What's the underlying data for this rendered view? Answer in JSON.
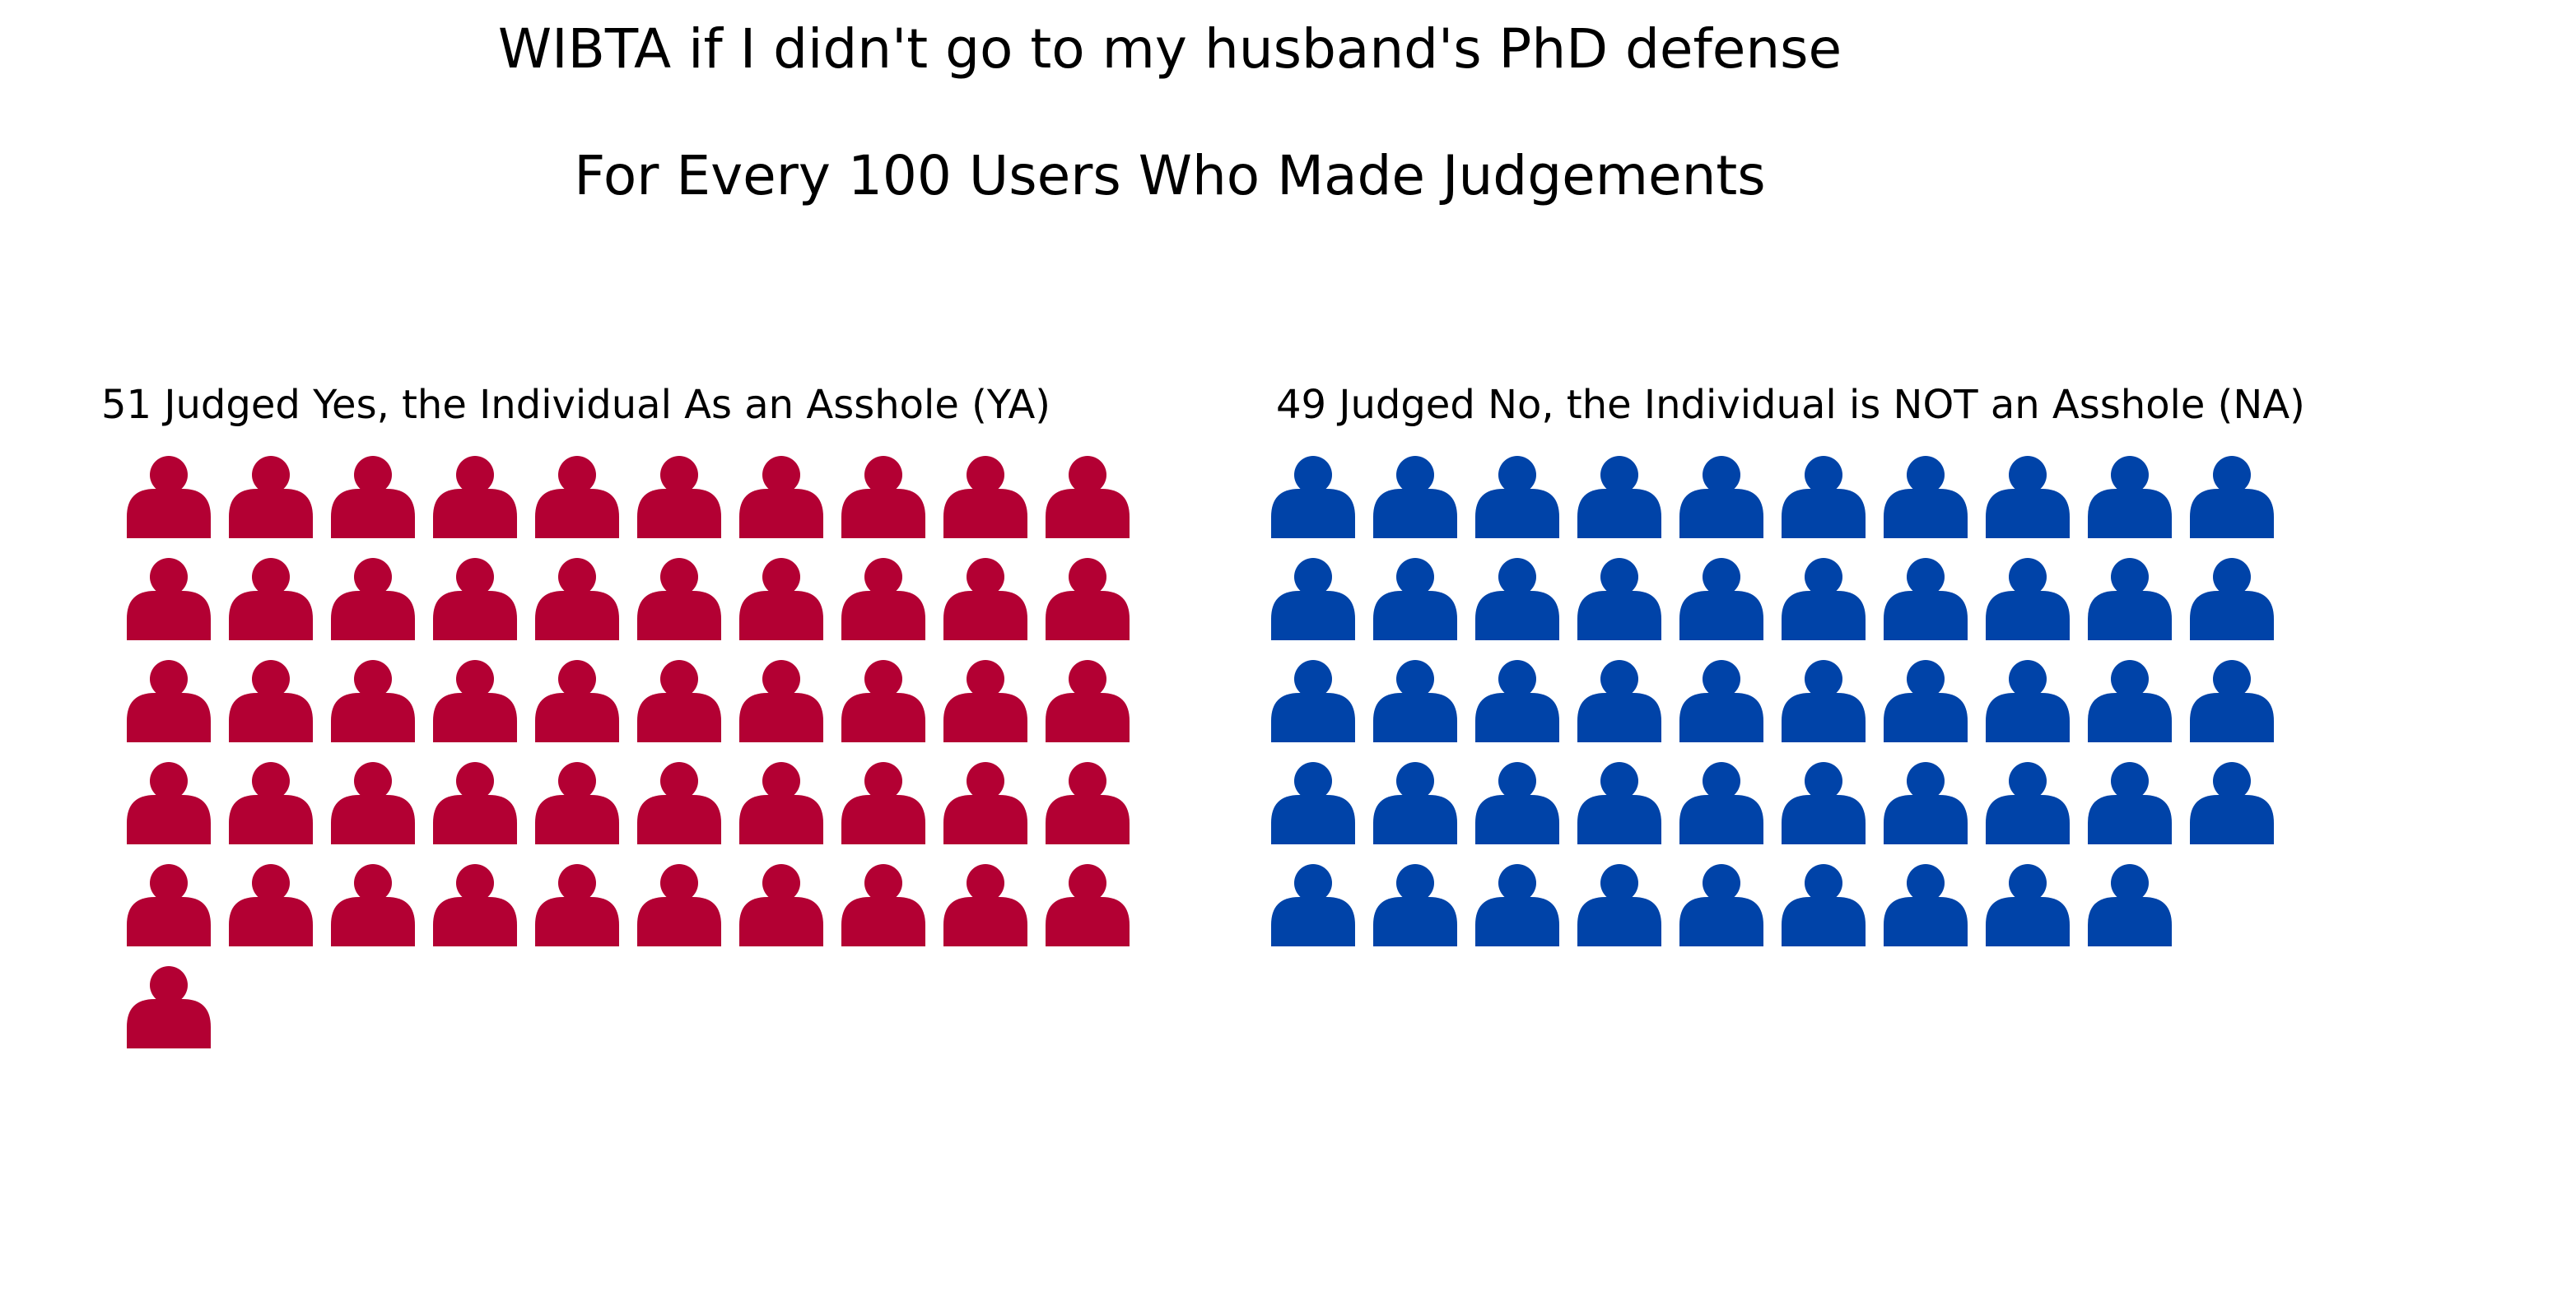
{
  "page": {
    "title": "WIBTA if I didn't go to my husband's PhD defense",
    "subtitle": "For Every 100 Users Who Made Judgements"
  },
  "chart_data": {
    "type": "waffle",
    "icon": "person-icon",
    "total": 100,
    "columns": 10,
    "title": "WIBTA if I didn't go to my husband's PhD defense",
    "subtitle": "For Every 100 Users Who Made Judgements",
    "groups": [
      {
        "key": "ya",
        "label": "51 Judged Yes, the Individual As an Asshole (YA)",
        "value": 51,
        "color": "#b30033"
      },
      {
        "key": "na",
        "label": "49 Judged No, the Individual is NOT an Asshole (NA)",
        "value": 49,
        "color": "#0043a8"
      }
    ]
  }
}
